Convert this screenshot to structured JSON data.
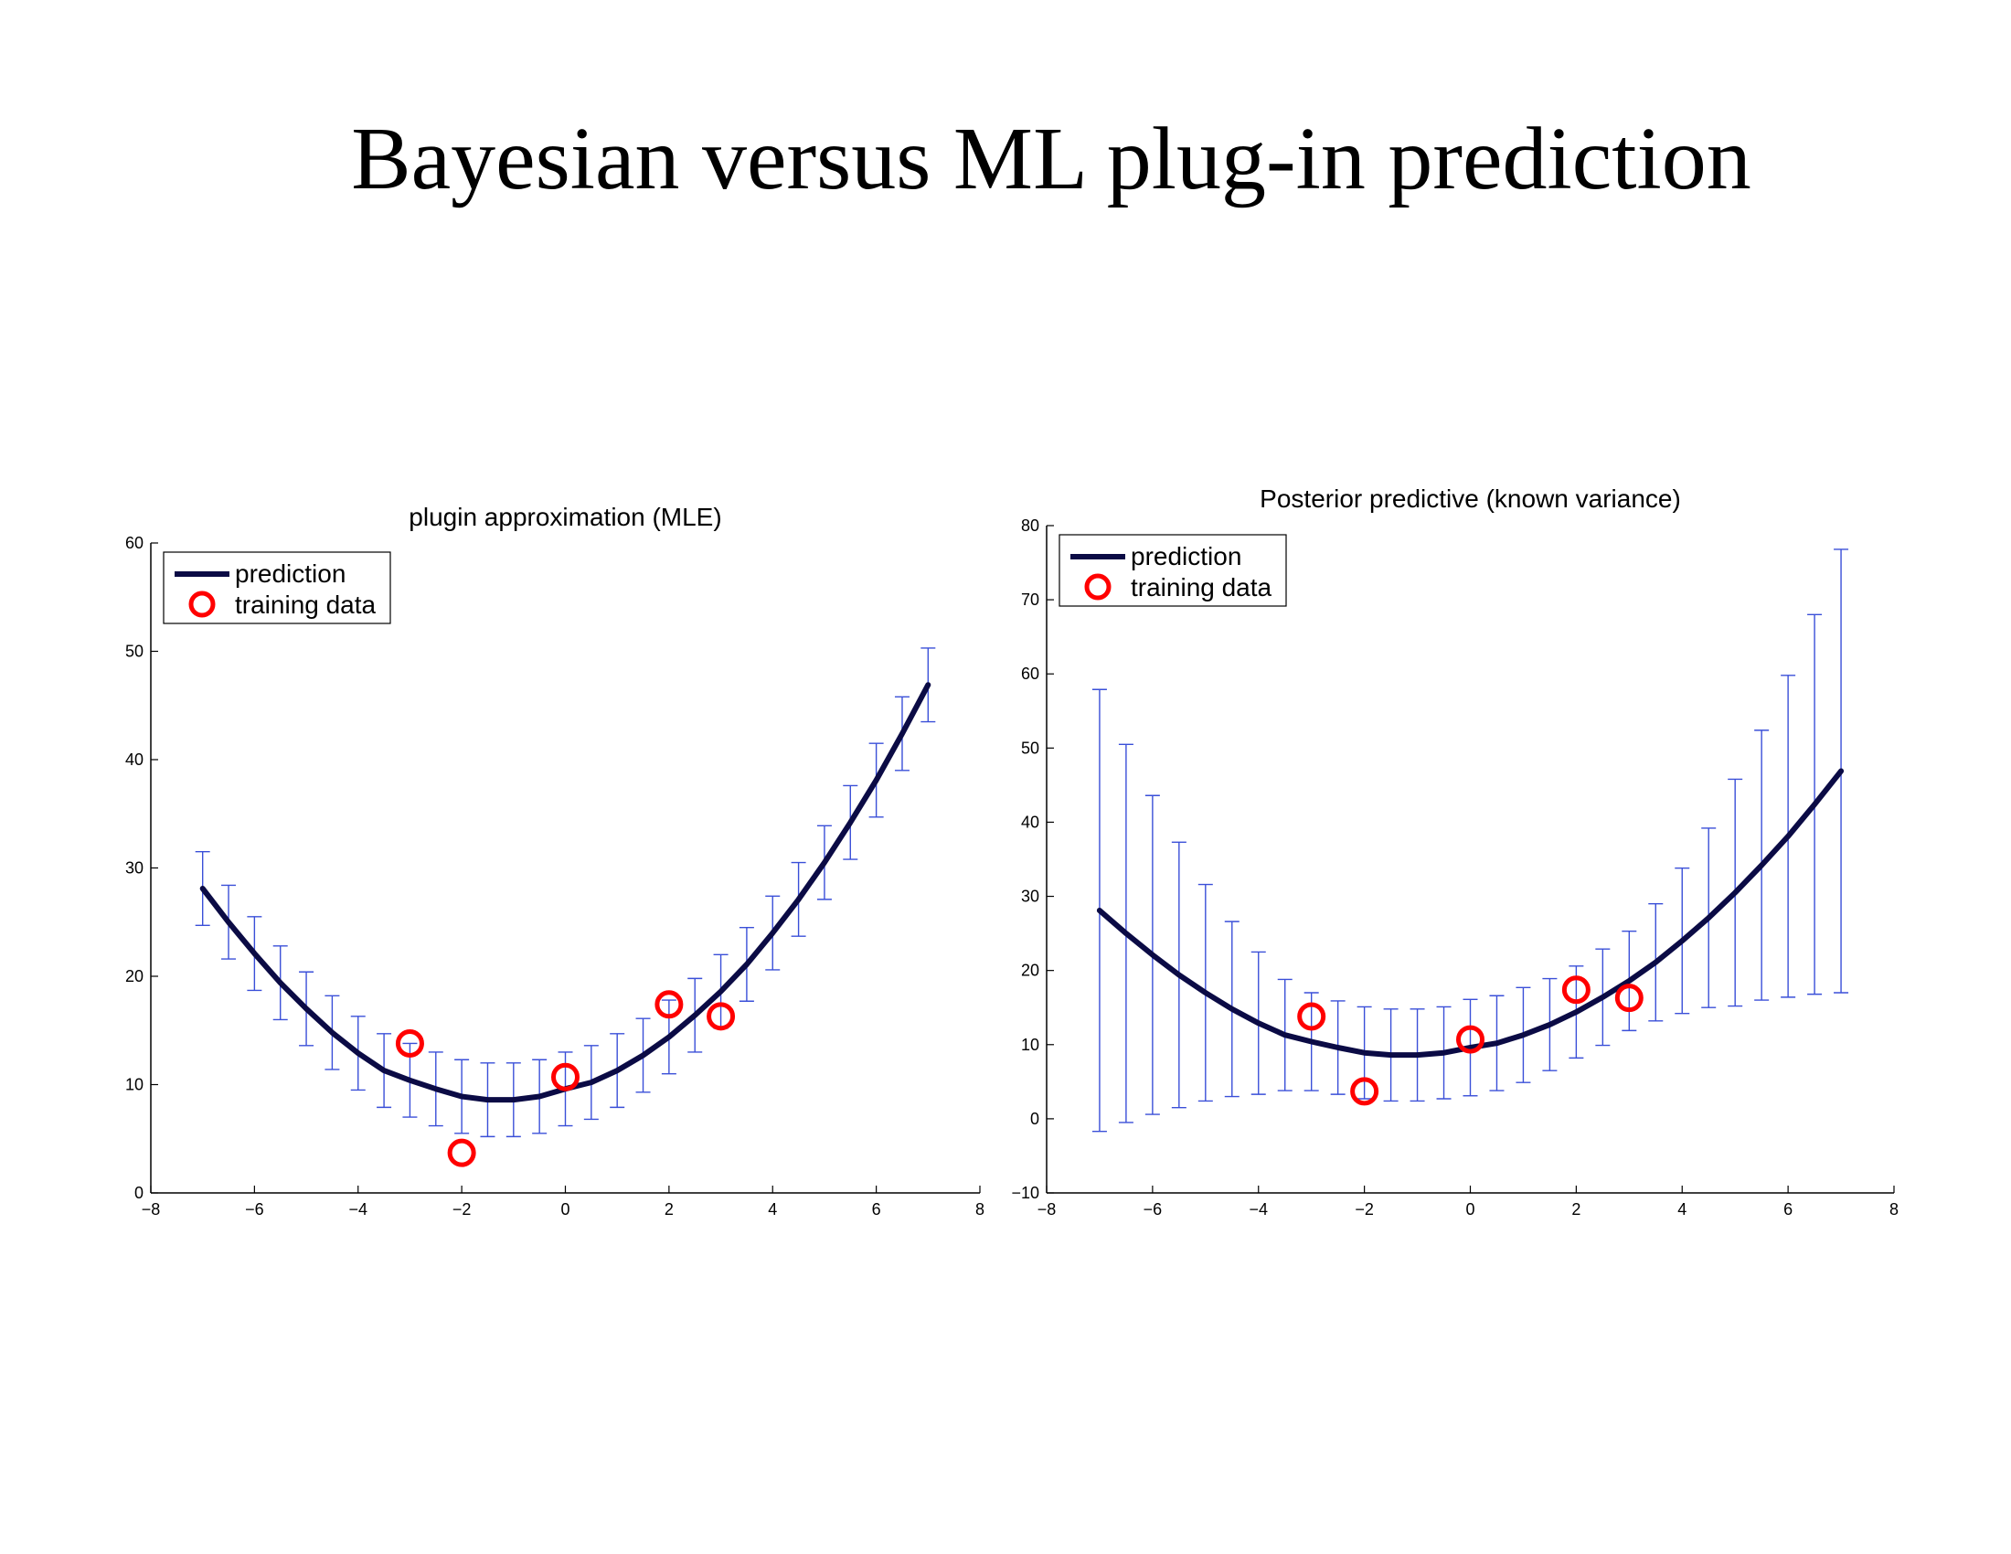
{
  "slide": {
    "title": "Bayesian versus ML plug-in prediction"
  },
  "chart_data": [
    {
      "type": "line",
      "title": "plugin approximation (MLE)",
      "xlabel": "",
      "ylabel": "",
      "xlim": [
        -8,
        8
      ],
      "ylim": [
        0,
        60
      ],
      "xticks": [
        -8,
        -6,
        -4,
        -2,
        0,
        2,
        4,
        6,
        8
      ],
      "yticks": [
        0,
        10,
        20,
        30,
        40,
        50,
        60
      ],
      "xtick_labels": [
        "−8",
        "−6",
        "−4",
        "−2",
        "0",
        "2",
        "4",
        "6",
        "8"
      ],
      "ytick_labels": [
        "0",
        "10",
        "20",
        "30",
        "40",
        "50",
        "60"
      ],
      "grid": false,
      "legend_position": "top-left",
      "legend": [
        "prediction",
        "training data"
      ],
      "series": [
        {
          "name": "prediction",
          "kind": "line",
          "color": "#0b0b45",
          "x": [
            -7,
            -6.5,
            -6,
            -5.5,
            -5,
            -4.5,
            -4,
            -3.5,
            -3,
            -2.5,
            -2,
            -1.5,
            -1,
            -0.5,
            0,
            0.5,
            1,
            1.5,
            2,
            2.5,
            3,
            3.5,
            4,
            4.5,
            5,
            5.5,
            6,
            6.5,
            7
          ],
          "y": [
            28.1,
            25.0,
            22.1,
            19.4,
            17.0,
            14.8,
            12.9,
            11.3,
            10.4,
            9.6,
            8.9,
            8.6,
            8.6,
            8.9,
            9.6,
            10.2,
            11.3,
            12.7,
            14.4,
            16.4,
            18.6,
            21.1,
            24.0,
            27.1,
            30.5,
            34.2,
            38.1,
            42.4,
            46.9
          ],
          "err_lower": [
            3.4,
            3.4,
            3.4,
            3.4,
            3.4,
            3.4,
            3.4,
            3.4,
            3.4,
            3.4,
            3.4,
            3.4,
            3.4,
            3.4,
            3.4,
            3.4,
            3.4,
            3.4,
            3.4,
            3.4,
            3.4,
            3.4,
            3.4,
            3.4,
            3.4,
            3.4,
            3.4,
            3.4,
            3.4
          ],
          "err_upper": [
            3.4,
            3.4,
            3.4,
            3.4,
            3.4,
            3.4,
            3.4,
            3.4,
            3.4,
            3.4,
            3.4,
            3.4,
            3.4,
            3.4,
            3.4,
            3.4,
            3.4,
            3.4,
            3.4,
            3.4,
            3.4,
            3.4,
            3.4,
            3.4,
            3.4,
            3.4,
            3.4,
            3.4,
            3.4
          ],
          "err_color": "#3a4fd8"
        },
        {
          "name": "training data",
          "kind": "scatter",
          "color": "#ff0000",
          "x": [
            -3,
            -2,
            0,
            2,
            3
          ],
          "y": [
            13.8,
            3.7,
            10.7,
            17.4,
            16.3
          ]
        }
      ]
    },
    {
      "type": "line",
      "title": "Posterior predictive (known variance)",
      "xlabel": "",
      "ylabel": "",
      "xlim": [
        -8,
        8
      ],
      "ylim": [
        -10,
        80
      ],
      "xticks": [
        -8,
        -6,
        -4,
        -2,
        0,
        2,
        4,
        6,
        8
      ],
      "yticks": [
        -10,
        0,
        10,
        20,
        30,
        40,
        50,
        60,
        70,
        80
      ],
      "xtick_labels": [
        "−8",
        "−6",
        "−4",
        "−2",
        "0",
        "2",
        "4",
        "6",
        "8"
      ],
      "ytick_labels": [
        "−10",
        "0",
        "10",
        "20",
        "30",
        "40",
        "50",
        "60",
        "70",
        "80"
      ],
      "grid": false,
      "legend_position": "top-left",
      "legend": [
        "prediction",
        "training data"
      ],
      "series": [
        {
          "name": "prediction",
          "kind": "line",
          "color": "#0b0b45",
          "x": [
            -7,
            -6.5,
            -6,
            -5.5,
            -5,
            -4.5,
            -4,
            -3.5,
            -3,
            -2.5,
            -2,
            -1.5,
            -1,
            -0.5,
            0,
            0.5,
            1,
            1.5,
            2,
            2.5,
            3,
            3.5,
            4,
            4.5,
            5,
            5.5,
            6,
            6.5,
            7
          ],
          "y": [
            28.1,
            25.0,
            22.1,
            19.4,
            17.0,
            14.8,
            12.9,
            11.3,
            10.4,
            9.6,
            8.9,
            8.6,
            8.6,
            8.9,
            9.6,
            10.2,
            11.3,
            12.7,
            14.4,
            16.4,
            18.6,
            21.1,
            24.0,
            27.1,
            30.5,
            34.2,
            38.1,
            42.4,
            46.9
          ],
          "err_lower": [
            29.8,
            25.5,
            21.5,
            17.9,
            14.6,
            11.8,
            9.6,
            7.5,
            6.6,
            6.3,
            6.2,
            6.2,
            6.2,
            6.2,
            6.5,
            6.4,
            6.4,
            6.2,
            6.2,
            6.5,
            6.7,
            7.9,
            9.8,
            12.1,
            15.3,
            18.2,
            21.7,
            25.6,
            29.9
          ],
          "err_upper": [
            29.8,
            25.5,
            21.5,
            17.9,
            14.6,
            11.8,
            9.6,
            7.5,
            6.6,
            6.3,
            6.2,
            6.2,
            6.2,
            6.2,
            6.5,
            6.4,
            6.4,
            6.2,
            6.2,
            6.5,
            6.7,
            7.9,
            9.8,
            12.1,
            15.3,
            18.2,
            21.7,
            25.6,
            29.9
          ],
          "err_color": "#3a4fd8"
        },
        {
          "name": "training data",
          "kind": "scatter",
          "color": "#ff0000",
          "x": [
            -3,
            -2,
            0,
            2,
            3
          ],
          "y": [
            13.8,
            3.7,
            10.7,
            17.4,
            16.3
          ]
        }
      ]
    }
  ]
}
